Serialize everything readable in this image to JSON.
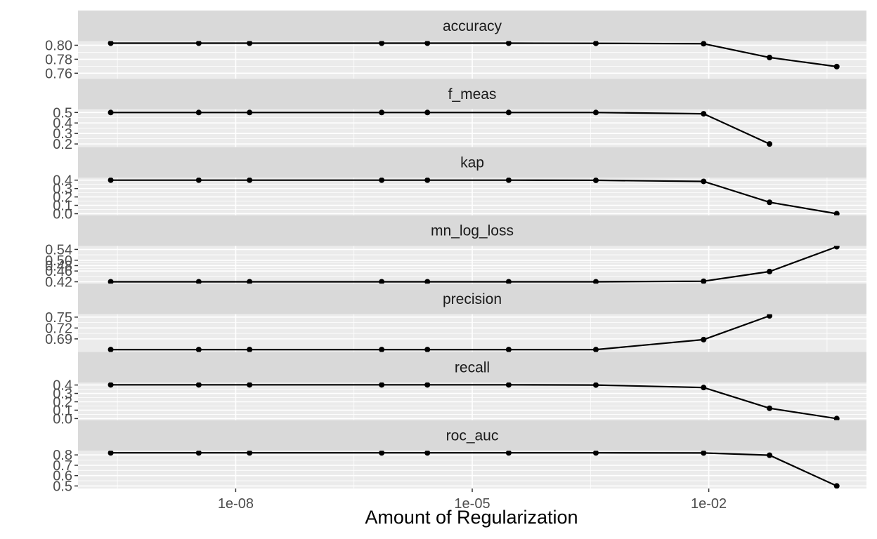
{
  "chart_data": {
    "type": "line",
    "xlabel": "Amount of Regularization",
    "x_scale": "log10",
    "xlim": [
      1e-10,
      1.0
    ],
    "x_ticks": [
      {
        "value": 1e-08,
        "label": "1e-08"
      },
      {
        "value": 1e-05,
        "label": "1e-05"
      },
      {
        "value": 0.01,
        "label": "1e-02"
      }
    ],
    "x": [
      2.6e-10,
      3.4e-09,
      1.5e-08,
      7.1e-07,
      2.7e-06,
      2.9e-05,
      0.00037,
      0.0086,
      0.059,
      0.42
    ],
    "grid": true,
    "panel_background": "#ebebeb",
    "strip_background": "#d9d9d9",
    "line_color": "#000000",
    "facets": [
      {
        "name": "accuracy",
        "ylim": [
          0.752,
          0.806
        ],
        "y_ticks": [
          {
            "value": 0.76,
            "label": "0.76"
          },
          {
            "value": 0.78,
            "label": "0.78"
          },
          {
            "value": 0.8,
            "label": "0.80"
          }
        ],
        "values": [
          0.803,
          0.803,
          0.803,
          0.803,
          0.803,
          0.803,
          0.8028,
          0.8022,
          0.7825,
          0.7695
        ]
      },
      {
        "name": "f_meas",
        "ylim": [
          0.17,
          0.53
        ],
        "y_ticks": [
          {
            "value": 0.2,
            "label": "0.2"
          },
          {
            "value": 0.3,
            "label": "0.3"
          },
          {
            "value": 0.4,
            "label": "0.4"
          },
          {
            "value": 0.5,
            "label": "0.5"
          }
        ],
        "values": [
          0.5,
          0.5,
          0.5,
          0.5,
          0.5,
          0.5,
          0.5,
          0.488,
          0.2
        ]
      },
      {
        "name": "kap",
        "ylim": [
          -0.02,
          0.43
        ],
        "y_ticks": [
          {
            "value": 0.0,
            "label": "0.0"
          },
          {
            "value": 0.1,
            "label": "0.1"
          },
          {
            "value": 0.2,
            "label": "0.2"
          },
          {
            "value": 0.3,
            "label": "0.3"
          },
          {
            "value": 0.4,
            "label": "0.4"
          }
        ],
        "values": [
          0.4,
          0.4,
          0.4,
          0.4,
          0.4,
          0.4,
          0.398,
          0.385,
          0.136,
          0.0
        ]
      },
      {
        "name": "mn_log_loss",
        "ylim": [
          0.413,
          0.553
        ],
        "y_ticks": [
          {
            "value": 0.42,
            "label": "0.42"
          },
          {
            "value": 0.46,
            "label": "0.46"
          },
          {
            "value": 0.48,
            "label": "0.48"
          },
          {
            "value": 0.5,
            "label": "0.50"
          },
          {
            "value": 0.54,
            "label": "0.54"
          }
        ],
        "values": [
          0.42,
          0.42,
          0.42,
          0.42,
          0.42,
          0.42,
          0.42,
          0.422,
          0.458,
          0.55
        ]
      },
      {
        "name": "precision",
        "ylim": [
          0.654,
          0.758
        ],
        "y_ticks": [
          {
            "value": 0.69,
            "label": "0.69"
          },
          {
            "value": 0.72,
            "label": "0.72"
          },
          {
            "value": 0.75,
            "label": "0.75"
          }
        ],
        "values": [
          0.6605,
          0.6605,
          0.6605,
          0.6605,
          0.6605,
          0.6605,
          0.6605,
          0.688,
          0.7535
        ]
      },
      {
        "name": "recall",
        "ylim": [
          -0.02,
          0.43
        ],
        "y_ticks": [
          {
            "value": 0.0,
            "label": "0.0"
          },
          {
            "value": 0.1,
            "label": "0.1"
          },
          {
            "value": 0.2,
            "label": "0.2"
          },
          {
            "value": 0.3,
            "label": "0.3"
          },
          {
            "value": 0.4,
            "label": "0.4"
          }
        ],
        "values": [
          0.402,
          0.402,
          0.402,
          0.402,
          0.402,
          0.402,
          0.4,
          0.37,
          0.123,
          0.0
        ]
      },
      {
        "name": "roc_auc",
        "ylim": [
          0.475,
          0.84
        ],
        "y_ticks": [
          {
            "value": 0.5,
            "label": "0.5"
          },
          {
            "value": 0.6,
            "label": "0.6"
          },
          {
            "value": 0.7,
            "label": "0.7"
          },
          {
            "value": 0.8,
            "label": "0.8"
          }
        ],
        "values": [
          0.82,
          0.82,
          0.82,
          0.82,
          0.82,
          0.82,
          0.82,
          0.819,
          0.797,
          0.5
        ]
      }
    ]
  }
}
